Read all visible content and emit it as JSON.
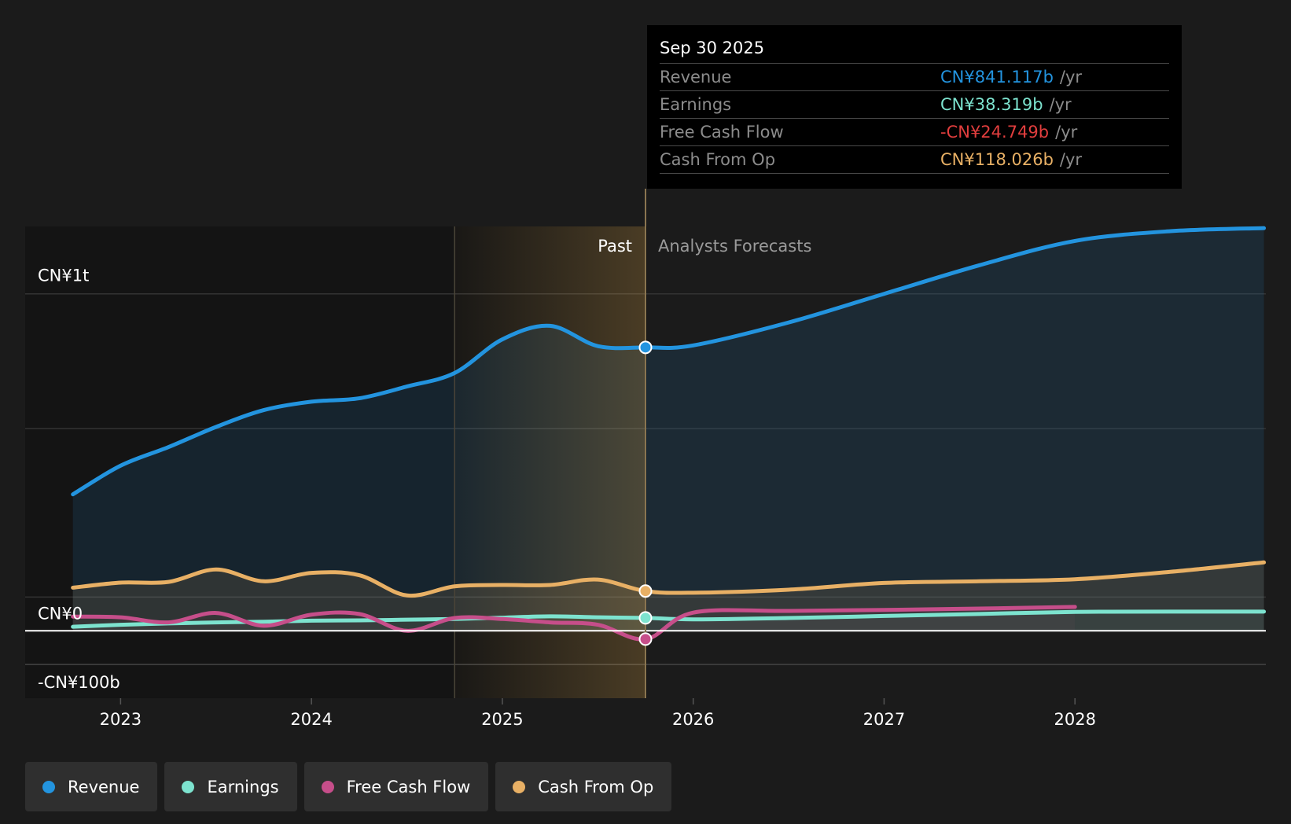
{
  "chart_data": {
    "type": "area",
    "x_ticks": [
      "2023",
      "2024",
      "2025",
      "2026",
      "2027",
      "2028"
    ],
    "y_labels": [
      "CN¥1t",
      "CN¥0",
      "-CN¥100b"
    ],
    "ylim": [
      -200,
      1200
    ],
    "y_axis_unit": "CN¥ billions",
    "segments": {
      "past": "Past",
      "forecast": "Analysts Forecasts"
    },
    "highlight_date": 2025.75,
    "past_band_start": 2024.75,
    "series": [
      {
        "name": "Revenue",
        "color": "#2394df",
        "x": [
          2022.75,
          2023.0,
          2023.25,
          2023.5,
          2023.75,
          2024.0,
          2024.25,
          2024.5,
          2024.75,
          2025.0,
          2025.25,
          2025.5,
          2025.75,
          2026.0,
          2026.5,
          2027.0,
          2027.5,
          2028.0,
          2028.5,
          2028.99
        ],
        "values": [
          405,
          490,
          545,
          605,
          655,
          680,
          690,
          725,
          765,
          865,
          905,
          845,
          841.1,
          847,
          915,
          1000,
          1085,
          1157,
          1186,
          1195
        ]
      },
      {
        "name": "Earnings",
        "color": "#7de3cf",
        "x": [
          2022.75,
          2023.0,
          2023.25,
          2023.5,
          2023.75,
          2024.0,
          2024.25,
          2024.5,
          2024.75,
          2025.0,
          2025.25,
          2025.5,
          2025.75,
          2026.0,
          2026.5,
          2027.0,
          2027.5,
          2028.0,
          2028.5,
          2028.99
        ],
        "values": [
          12,
          18,
          22,
          25,
          27,
          30,
          31,
          33,
          35,
          39,
          43,
          40,
          38.3,
          34,
          38,
          44,
          50,
          56,
          57,
          57
        ]
      },
      {
        "name": "Free Cash Flow",
        "color": "#c64e8a",
        "x": [
          2022.75,
          2023.0,
          2023.25,
          2023.5,
          2023.75,
          2024.0,
          2024.25,
          2024.5,
          2024.75,
          2025.0,
          2025.25,
          2025.5,
          2025.75,
          2026.0,
          2026.5,
          2027.0,
          2027.5,
          2028.0
        ],
        "values": [
          42,
          40,
          25,
          53,
          15,
          48,
          50,
          0,
          38,
          35,
          25,
          18,
          -24.7,
          54,
          59,
          62,
          66,
          71
        ]
      },
      {
        "name": "Cash From Op",
        "color": "#e8b065",
        "x": [
          2022.75,
          2023.0,
          2023.25,
          2023.5,
          2023.75,
          2024.0,
          2024.25,
          2024.5,
          2024.75,
          2025.0,
          2025.25,
          2025.5,
          2025.75,
          2026.0,
          2026.5,
          2027.0,
          2027.5,
          2028.0,
          2028.5,
          2028.99
        ],
        "values": [
          128,
          143,
          145,
          182,
          147,
          172,
          165,
          105,
          132,
          136,
          136,
          152,
          118.0,
          113,
          122,
          142,
          147,
          153,
          175,
          203
        ]
      }
    ]
  },
  "tooltip": {
    "date": "Sep 30 2025",
    "unit": "/yr",
    "rows": [
      {
        "label": "Revenue",
        "value": "CN¥841.117b",
        "color": "#2394df"
      },
      {
        "label": "Earnings",
        "value": "CN¥38.319b",
        "color": "#7de3cf"
      },
      {
        "label": "Free Cash Flow",
        "value": "-CN¥24.749b",
        "color": "#e23e3e"
      },
      {
        "label": "Cash From Op",
        "value": "CN¥118.026b",
        "color": "#e8b065"
      }
    ]
  },
  "legend": [
    {
      "label": "Revenue",
      "color": "#2394df"
    },
    {
      "label": "Earnings",
      "color": "#7de3cf"
    },
    {
      "label": "Free Cash Flow",
      "color": "#c64e8a"
    },
    {
      "label": "Cash From Op",
      "color": "#e8b065"
    }
  ]
}
